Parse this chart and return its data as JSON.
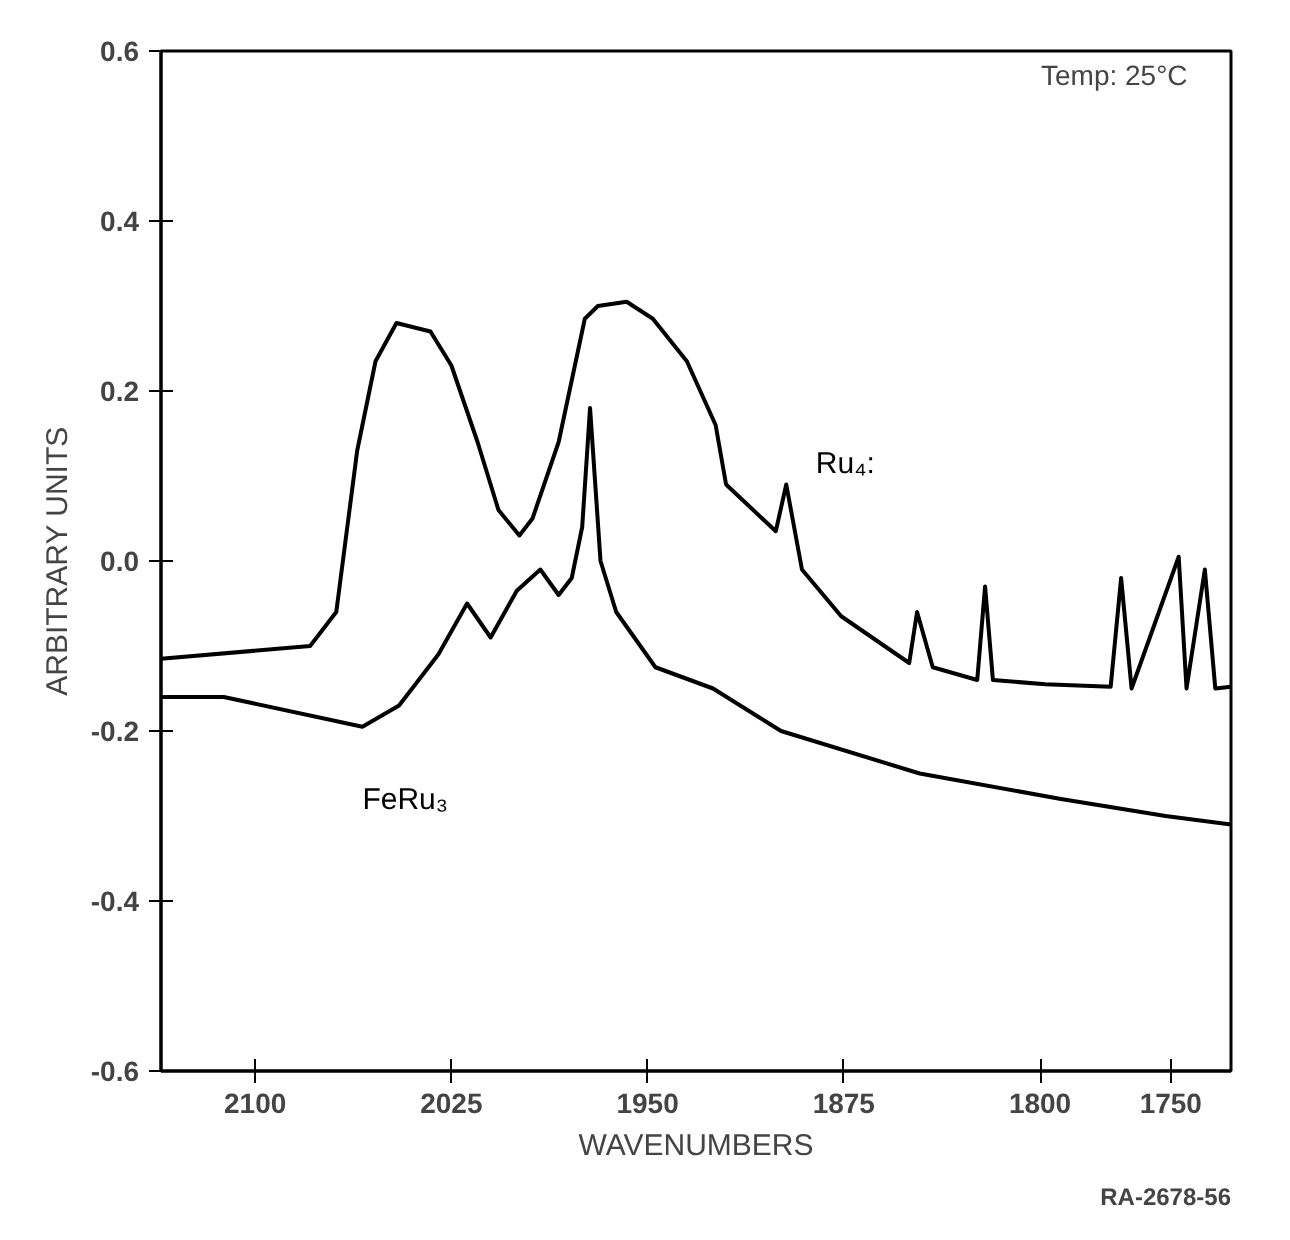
{
  "chart_data": {
    "type": "line",
    "xlabel": "WAVENUMBERS",
    "ylabel": "ARBITRARY UNITS",
    "xlim": [
      2136,
      1727
    ],
    "xticks": [
      2100,
      2025,
      1950,
      1875,
      1800,
      1750
    ],
    "ylim": [
      -0.6,
      0.6
    ],
    "yticks": [
      -0.6,
      -0.4,
      -0.2,
      {
        "value": 0,
        "label": "0.0"
      },
      0.2,
      0.4,
      0.6
    ],
    "line_style": "solid",
    "annotations": [
      "Temp: 25°C",
      "RA-2678-56"
    ],
    "series": [
      {
        "name": "Ru₄:",
        "color": "#000000",
        "x": [
          2136,
          2079,
          2069,
          2061,
          2054,
          2046,
          2033,
          2025,
          2015,
          2007,
          1999,
          1994,
          1984,
          1974,
          1969,
          1958,
          1948,
          1935,
          1924,
          1920,
          1901,
          1897,
          1891,
          1876,
          1850,
          1847,
          1841,
          1824,
          1821,
          1818,
          1798,
          1773,
          1769,
          1765,
          1747,
          1744,
          1737,
          1733,
          1727
        ],
        "values": [
          -0.115,
          -0.1,
          -0.06,
          0.13,
          0.235,
          0.28,
          0.27,
          0.23,
          0.14,
          0.06,
          0.03,
          0.05,
          0.14,
          0.285,
          0.3,
          0.305,
          0.285,
          0.235,
          0.16,
          0.09,
          0.035,
          0.09,
          -0.01,
          -0.065,
          -0.12,
          -0.06,
          -0.125,
          -0.14,
          -0.03,
          -0.14,
          -0.145,
          -0.148,
          -0.02,
          -0.15,
          0.005,
          -0.15,
          -0.01,
          -0.15,
          -0.148
        ]
      },
      {
        "name": "FeRu₃",
        "color": "#000000",
        "x": [
          2136,
          2112,
          2059,
          2045,
          2030,
          2019,
          2010,
          2000,
          1991,
          1984,
          1979,
          1975,
          1972,
          1968,
          1962,
          1947,
          1925,
          1899,
          1846,
          1792,
          1752,
          1727
        ],
        "values": [
          -0.16,
          -0.16,
          -0.195,
          -0.17,
          -0.11,
          -0.05,
          -0.09,
          -0.035,
          -0.01,
          -0.04,
          -0.02,
          0.04,
          0.18,
          0.0,
          -0.06,
          -0.125,
          -0.15,
          -0.2,
          -0.25,
          -0.28,
          -0.3,
          -0.31
        ]
      }
    ]
  }
}
